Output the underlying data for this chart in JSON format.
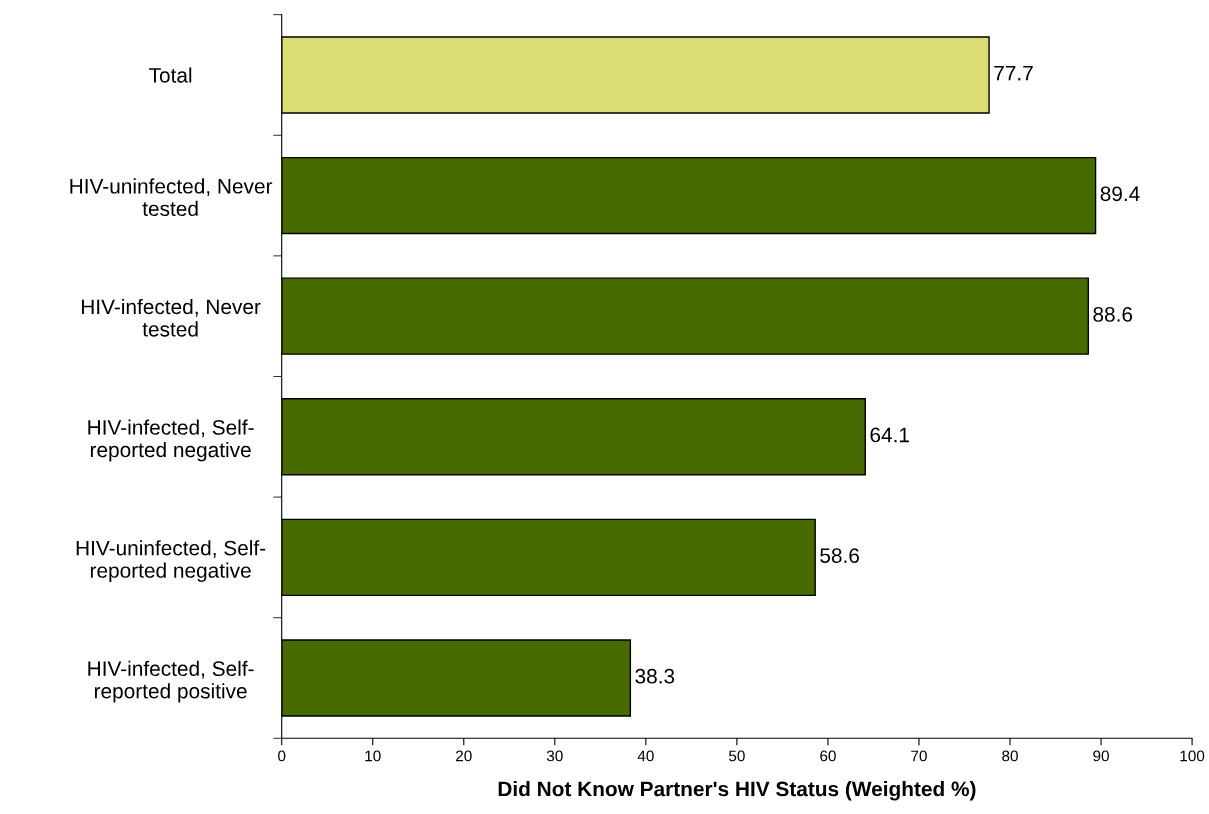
{
  "chart_data": {
    "type": "bar",
    "orientation": "horizontal",
    "categories": [
      "Total",
      "HIV-uninfected, Never\ntested",
      "HIV-infected, Never\ntested",
      "HIV-infected, Self-\nreported negative",
      "HIV-uninfected, Self-\nreported negative",
      "HIV-infected, Self-\nreported positive"
    ],
    "values": [
      77.7,
      89.4,
      88.6,
      64.1,
      58.6,
      38.3
    ],
    "colors": [
      "#dcdc76",
      "#476b00",
      "#476b00",
      "#476b00",
      "#476b00",
      "#476b00"
    ],
    "xlabel": "Did Not Know Partner's HIV Status (Weighted %)",
    "xlim": [
      0,
      100
    ],
    "xticks": [
      0,
      10,
      20,
      30,
      40,
      50,
      60,
      70,
      80,
      90,
      100
    ],
    "data_labels": true,
    "grid": false,
    "legend": false
  }
}
